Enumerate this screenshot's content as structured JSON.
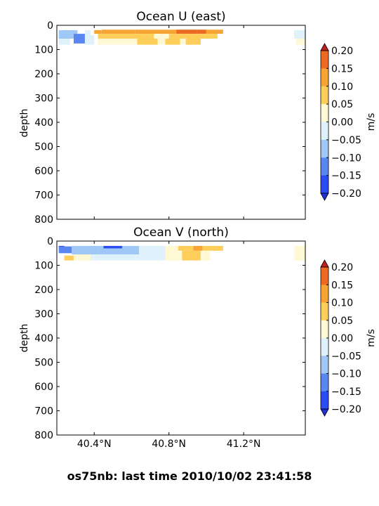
{
  "figure_title": "os75nb: last time 2010/10/02 23:41:58",
  "colorbar": {
    "label": "m/s",
    "ticks": [
      "0.20",
      "0.15",
      "0.10",
      "0.05",
      "0.00",
      "−0.05",
      "−0.10",
      "−0.15",
      "−0.20"
    ],
    "levels": [
      -0.2,
      -0.15,
      -0.1,
      -0.05,
      0.0,
      0.05,
      0.1,
      0.15,
      0.2
    ],
    "colors": [
      "#2b4cf2",
      "#5a86f0",
      "#9fc8f6",
      "#dff2fb",
      "#fff8d4",
      "#fdcf5a",
      "#f7a435",
      "#ec6a21"
    ],
    "under_color": "#1f2fd9",
    "over_color": "#c2201a",
    "extend": "both"
  },
  "chart_data": [
    {
      "type": "heatmap",
      "title": "Ocean U (east)",
      "xlabel": "",
      "ylabel": "depth",
      "xlim": [
        40.2,
        41.53
      ],
      "ylim": [
        800,
        0
      ],
      "xticks": [
        "40.4°N",
        "40.8°N",
        "41.2°N"
      ],
      "yticks": [
        "0",
        "100",
        "200",
        "300",
        "400",
        "500",
        "600",
        "700",
        "800"
      ],
      "xtick_labels_visible": false,
      "cells": [
        {
          "lat": [
            40.21,
            40.31
          ],
          "depth": [
            20,
            55
          ],
          "value": -0.07
        },
        {
          "lat": [
            40.29,
            40.35
          ],
          "depth": [
            35,
            75
          ],
          "value": -0.12
        },
        {
          "lat": [
            40.35,
            40.38
          ],
          "depth": [
            20,
            40
          ],
          "value": -0.03
        },
        {
          "lat": [
            40.21,
            40.27
          ],
          "depth": [
            55,
            80
          ],
          "value": -0.04
        },
        {
          "lat": [
            40.35,
            40.4
          ],
          "depth": [
            40,
            80
          ],
          "value": -0.05
        },
        {
          "lat": [
            40.4,
            40.44
          ],
          "depth": [
            20,
            35
          ],
          "value": 0.12
        },
        {
          "lat": [
            40.44,
            40.62
          ],
          "depth": [
            18,
            35
          ],
          "value": 0.13
        },
        {
          "lat": [
            40.62,
            40.84
          ],
          "depth": [
            18,
            35
          ],
          "value": 0.12
        },
        {
          "lat": [
            40.84,
            40.95
          ],
          "depth": [
            18,
            35
          ],
          "value": 0.16
        },
        {
          "lat": [
            40.95,
            41.0
          ],
          "depth": [
            18,
            35
          ],
          "value": 0.19
        },
        {
          "lat": [
            41.0,
            41.09
          ],
          "depth": [
            18,
            35
          ],
          "value": 0.14
        },
        {
          "lat": [
            40.42,
            40.58
          ],
          "depth": [
            35,
            55
          ],
          "value": 0.07
        },
        {
          "lat": [
            40.58,
            40.72
          ],
          "depth": [
            35,
            55
          ],
          "value": 0.09
        },
        {
          "lat": [
            40.72,
            40.8
          ],
          "depth": [
            35,
            55
          ],
          "value": 0.04
        },
        {
          "lat": [
            40.8,
            40.99
          ],
          "depth": [
            35,
            55
          ],
          "value": 0.07
        },
        {
          "lat": [
            40.99,
            41.06
          ],
          "depth": [
            35,
            55
          ],
          "value": 0.07
        },
        {
          "lat": [
            40.42,
            40.53
          ],
          "depth": [
            55,
            80
          ],
          "value": 0.03
        },
        {
          "lat": [
            40.53,
            40.63
          ],
          "depth": [
            55,
            80
          ],
          "value": 0.04
        },
        {
          "lat": [
            40.63,
            40.74
          ],
          "depth": [
            55,
            80
          ],
          "value": 0.07
        },
        {
          "lat": [
            40.74,
            40.78
          ],
          "depth": [
            55,
            80
          ],
          "value": 0.03
        },
        {
          "lat": [
            40.78,
            40.86
          ],
          "depth": [
            55,
            80
          ],
          "value": 0.07
        },
        {
          "lat": [
            40.86,
            40.89
          ],
          "depth": [
            55,
            80
          ],
          "value": 0.02
        },
        {
          "lat": [
            40.89,
            40.97
          ],
          "depth": [
            55,
            80
          ],
          "value": 0.07
        },
        {
          "lat": [
            41.47,
            41.53
          ],
          "depth": [
            20,
            55
          ],
          "value": -0.03
        },
        {
          "lat": [
            41.48,
            41.53
          ],
          "depth": [
            55,
            80
          ],
          "value": 0.02
        }
      ]
    },
    {
      "type": "heatmap",
      "title": "Ocean V (north)",
      "xlabel": "",
      "ylabel": "depth",
      "xlim": [
        40.2,
        41.53
      ],
      "ylim": [
        800,
        0
      ],
      "xticks": [
        "40.4°N",
        "40.8°N",
        "41.2°N"
      ],
      "yticks": [
        "0",
        "100",
        "200",
        "300",
        "400",
        "500",
        "600",
        "700",
        "800"
      ],
      "xtick_labels_visible": true,
      "cells": [
        {
          "lat": [
            40.21,
            40.24
          ],
          "depth": [
            20,
            35
          ],
          "value": -0.21
        },
        {
          "lat": [
            40.21,
            40.28
          ],
          "depth": [
            22,
            50
          ],
          "value": -0.12
        },
        {
          "lat": [
            40.28,
            40.42
          ],
          "depth": [
            20,
            55
          ],
          "value": -0.07
        },
        {
          "lat": [
            40.42,
            40.64
          ],
          "depth": [
            20,
            55
          ],
          "value": -0.07
        },
        {
          "lat": [
            40.45,
            40.55
          ],
          "depth": [
            20,
            30
          ],
          "value": -0.16
        },
        {
          "lat": [
            40.64,
            40.78
          ],
          "depth": [
            20,
            80
          ],
          "value": -0.03
        },
        {
          "lat": [
            40.38,
            40.64
          ],
          "depth": [
            55,
            80
          ],
          "value": -0.05
        },
        {
          "lat": [
            40.24,
            40.29
          ],
          "depth": [
            60,
            80
          ],
          "value": 0.07
        },
        {
          "lat": [
            40.29,
            40.38
          ],
          "depth": [
            55,
            80
          ],
          "value": 0.03
        },
        {
          "lat": [
            40.78,
            40.85
          ],
          "depth": [
            20,
            45
          ],
          "value": 0.03
        },
        {
          "lat": [
            40.85,
            40.93
          ],
          "depth": [
            20,
            40
          ],
          "value": 0.06
        },
        {
          "lat": [
            40.93,
            40.98
          ],
          "depth": [
            20,
            40
          ],
          "value": 0.13
        },
        {
          "lat": [
            40.98,
            41.09
          ],
          "depth": [
            20,
            40
          ],
          "value": 0.07
        },
        {
          "lat": [
            40.78,
            40.87
          ],
          "depth": [
            45,
            80
          ],
          "value": 0.03
        },
        {
          "lat": [
            40.87,
            40.97
          ],
          "depth": [
            40,
            80
          ],
          "value": 0.08
        },
        {
          "lat": [
            40.97,
            41.02
          ],
          "depth": [
            40,
            80
          ],
          "value": 0.03
        },
        {
          "lat": [
            41.47,
            41.53
          ],
          "depth": [
            20,
            80
          ],
          "value": 0.03
        }
      ]
    }
  ]
}
